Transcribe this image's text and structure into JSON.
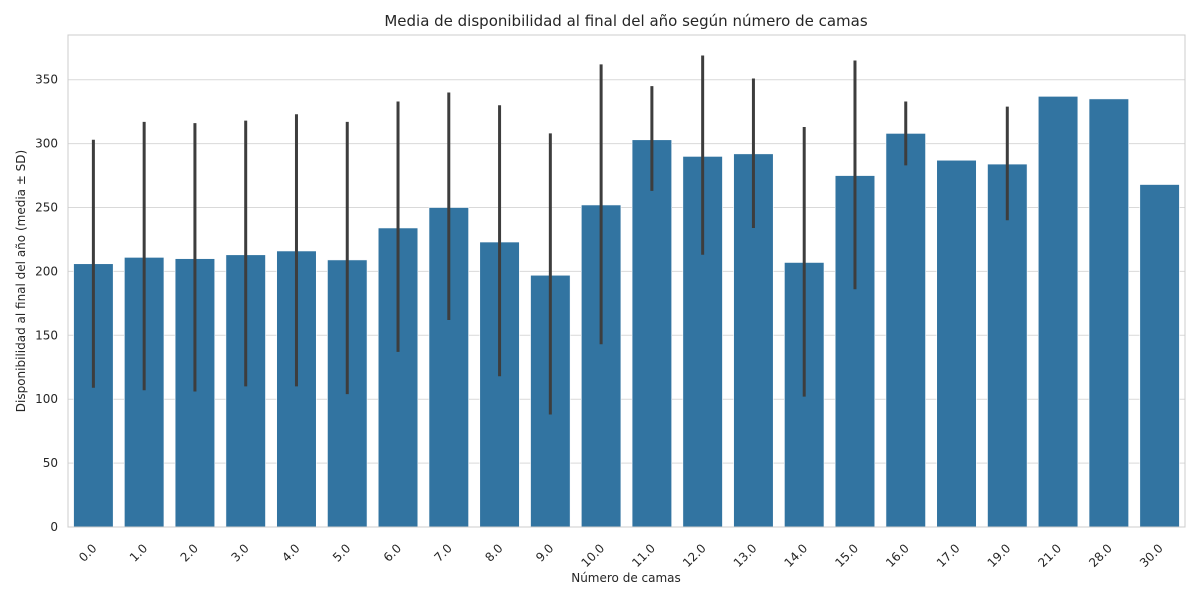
{
  "chart_data": {
    "type": "bar",
    "title": "Media de disponibilidad al final del año según número de camas",
    "xlabel": "Número de camas",
    "ylabel": "Disponibilidad al final del año (media ± SD)",
    "ylim": [
      0,
      385
    ],
    "yticks": [
      0,
      50,
      100,
      150,
      200,
      250,
      300,
      350
    ],
    "grid": true,
    "categories": [
      "0.0",
      "1.0",
      "2.0",
      "3.0",
      "4.0",
      "5.0",
      "6.0",
      "7.0",
      "8.0",
      "9.0",
      "10.0",
      "11.0",
      "12.0",
      "13.0",
      "14.0",
      "15.0",
      "16.0",
      "17.0",
      "19.0",
      "21.0",
      "28.0",
      "30.0"
    ],
    "values": [
      206,
      211,
      210,
      213,
      216,
      209,
      234,
      250,
      223,
      197,
      252,
      303,
      290,
      292,
      207,
      275,
      308,
      287,
      284,
      337,
      335,
      268
    ],
    "error_low": [
      109,
      107,
      106,
      110,
      110,
      104,
      137,
      162,
      118,
      88,
      143,
      263,
      213,
      234,
      102,
      186,
      283,
      null,
      240,
      null,
      null,
      null
    ],
    "error_high": [
      303,
      317,
      316,
      318,
      323,
      317,
      333,
      340,
      330,
      308,
      362,
      345,
      369,
      351,
      313,
      365,
      333,
      null,
      329,
      null,
      null,
      null
    ],
    "colors": {
      "bar": "#3274a1",
      "error": "#3d3d3d",
      "grid": "#d9d9d9",
      "axis": "#cccccc"
    }
  }
}
